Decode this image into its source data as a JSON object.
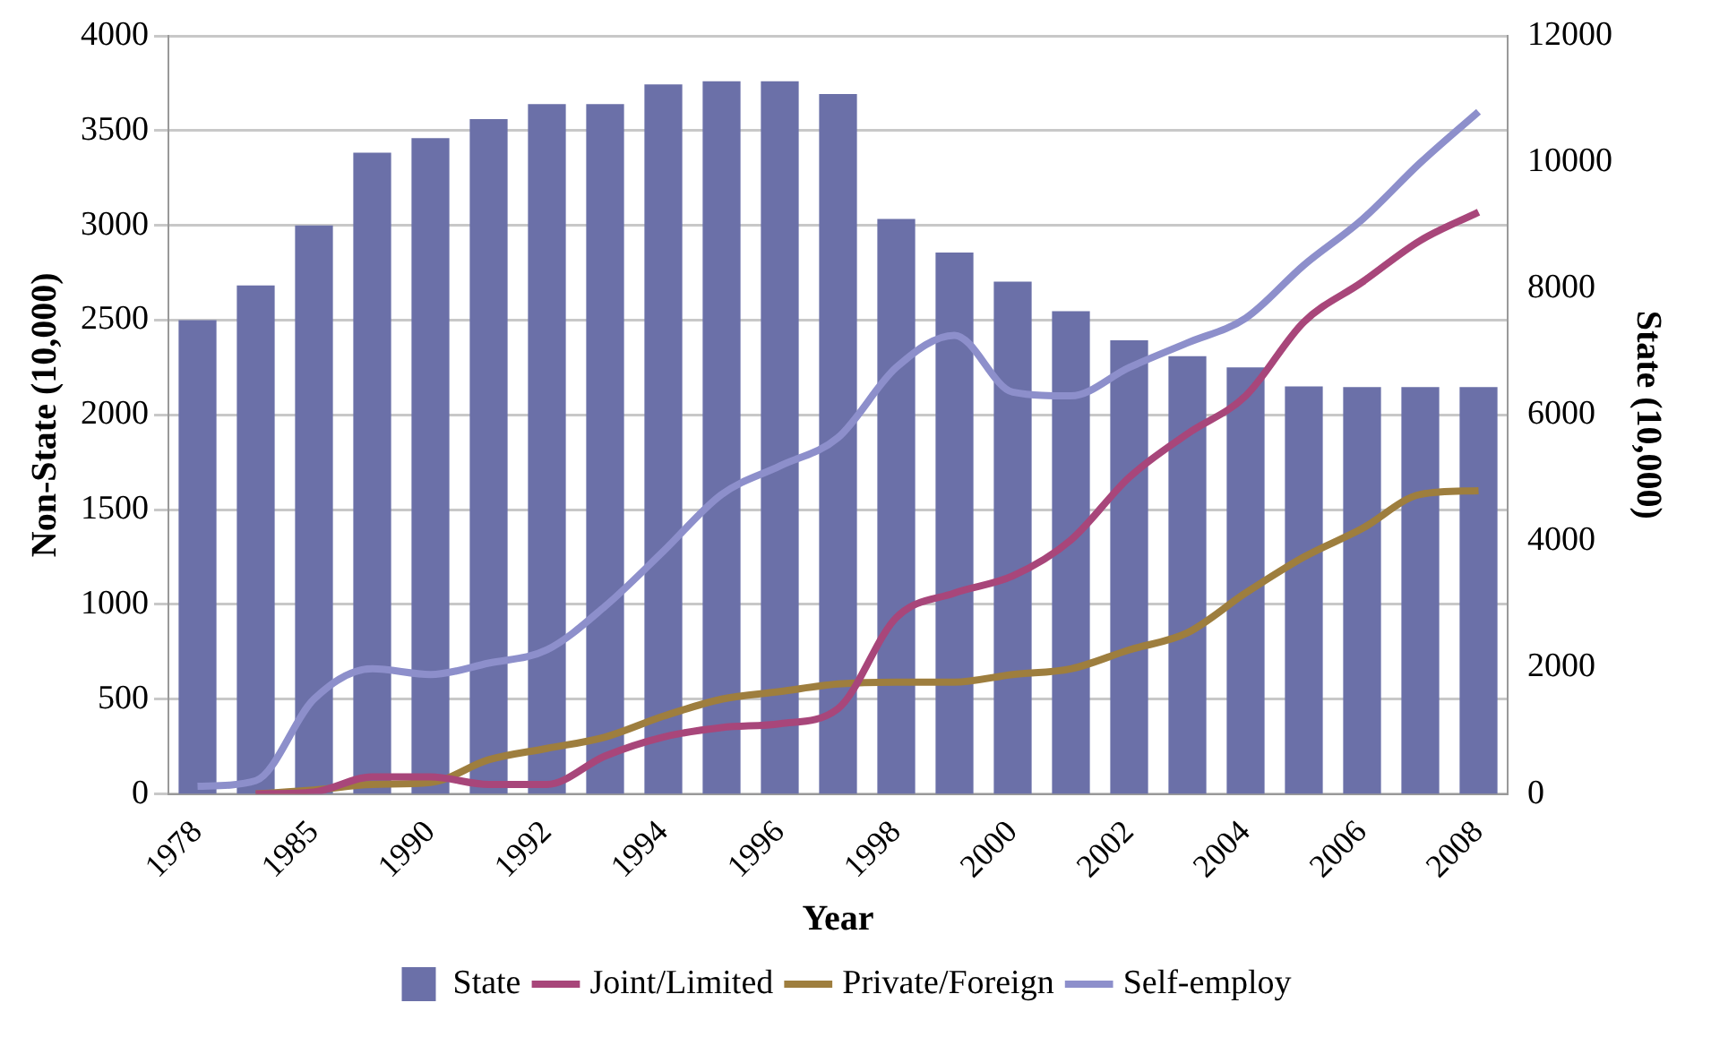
{
  "chart_data": {
    "type": "line",
    "xlabel": "Year",
    "ylabel": "Non-State (10,000)",
    "y2label": "State (10,000)",
    "categories": [
      "1978",
      null,
      "1985",
      null,
      "1990",
      null,
      "1992",
      null,
      "1994",
      null,
      "1996",
      null,
      "1998",
      null,
      "2000",
      null,
      "2002",
      null,
      "2004",
      null,
      "2006",
      null,
      "2008"
    ],
    "series": [
      {
        "name": "State",
        "type": "bar",
        "axis": "y2",
        "color": "#6b70a8",
        "values": [
          7500,
          8050,
          9000,
          10150,
          10380,
          10680,
          10920,
          10920,
          11230,
          11280,
          11280,
          11080,
          9100,
          8570,
          8110,
          7640,
          7180,
          6930,
          6750,
          6450,
          6440,
          6440,
          6440
        ]
      },
      {
        "name": "Joint/Limited",
        "color": "#a8467a",
        "values": [
          null,
          0,
          10,
          90,
          90,
          50,
          50,
          200,
          300,
          350,
          370,
          450,
          930,
          1060,
          1150,
          1340,
          1670,
          1900,
          2100,
          2490,
          2700,
          2920,
          3070
        ]
      },
      {
        "name": "Private/Foreign",
        "color": "#9e7e3e",
        "values": [
          null,
          0,
          20,
          50,
          60,
          180,
          240,
          300,
          410,
          500,
          540,
          580,
          590,
          590,
          630,
          660,
          760,
          850,
          1060,
          1250,
          1400,
          1580,
          1600
        ]
      },
      {
        "name": "Self-employ",
        "color": "#8d8fcb",
        "values": [
          40,
          70,
          500,
          660,
          630,
          690,
          760,
          990,
          1280,
          1580,
          1730,
          1880,
          2250,
          2420,
          2120,
          2100,
          2250,
          2380,
          2510,
          2790,
          3030,
          3330,
          3600
        ]
      }
    ],
    "ylim": [
      0,
      4000
    ],
    "yticks": [
      0,
      500,
      1000,
      1500,
      2000,
      2500,
      3000,
      3500,
      4000
    ],
    "y2lim": [
      0,
      12000
    ],
    "y2ticks": [
      0,
      2000,
      4000,
      6000,
      8000,
      10000,
      12000
    ],
    "grid": "y",
    "legend": "bottom"
  }
}
